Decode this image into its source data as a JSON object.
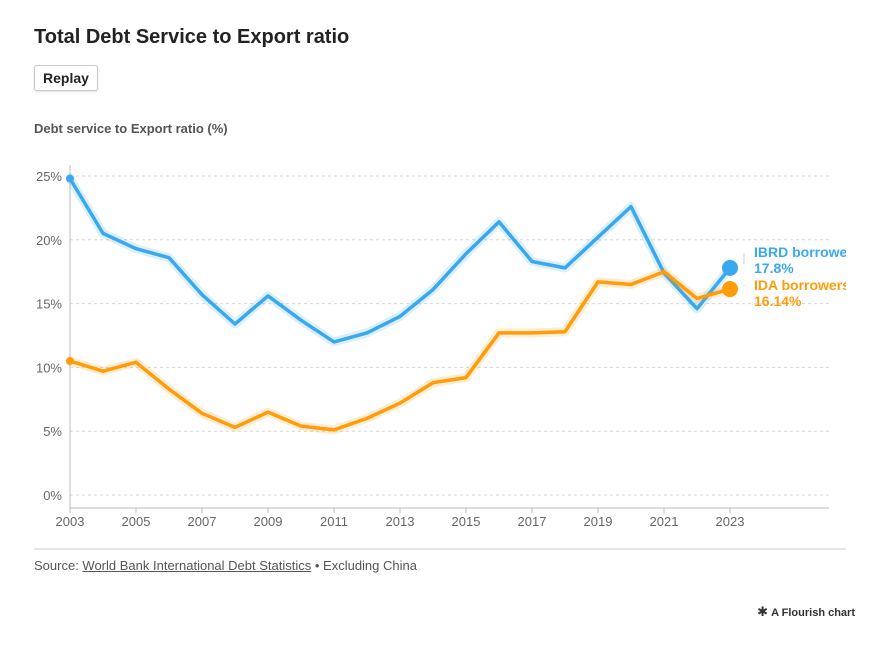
{
  "title": "Total Debt Service to Export ratio",
  "replay_label": "Replay",
  "source": {
    "prefix": "Source: ",
    "link_text": "World Bank International Debt Statistics",
    "suffix": " • Excluding China"
  },
  "credit": {
    "icon": "flourish-star-icon",
    "text": "A Flourish chart"
  },
  "chart_data": {
    "type": "line",
    "title": "Total Debt Service to Export ratio",
    "ylabel": "Debt service to Export ratio (%)",
    "xlabel": "",
    "ylim": [
      0,
      25
    ],
    "xlim": [
      2003,
      2023
    ],
    "yticks": [
      0,
      5,
      10,
      15,
      20,
      25
    ],
    "ytick_labels": [
      "0%",
      "5%",
      "10%",
      "15%",
      "20%",
      "25%"
    ],
    "xticks": [
      2003,
      2005,
      2007,
      2009,
      2011,
      2013,
      2015,
      2017,
      2019,
      2021,
      2023
    ],
    "grid": true,
    "legend": "end-labels",
    "x": [
      2003,
      2004,
      2005,
      2006,
      2007,
      2008,
      2009,
      2010,
      2011,
      2012,
      2013,
      2014,
      2015,
      2016,
      2017,
      2018,
      2019,
      2020,
      2021,
      2022,
      2023
    ],
    "series": [
      {
        "name": "IBRD borrowers",
        "color": "#3aa8ee",
        "end_value_label": "17.8%",
        "values": [
          24.8,
          20.5,
          19.3,
          18.6,
          15.7,
          13.4,
          15.6,
          13.7,
          12.0,
          12.7,
          14.0,
          16.1,
          18.9,
          21.4,
          18.3,
          17.8,
          20.2,
          22.6,
          17.4,
          14.6,
          17.8
        ]
      },
      {
        "name": "IDA borrowers",
        "color": "#ff9c0a",
        "end_value_label": "16.14%",
        "values": [
          10.5,
          9.7,
          10.4,
          8.3,
          6.4,
          5.3,
          6.5,
          5.4,
          5.1,
          6.0,
          7.2,
          8.8,
          9.2,
          12.7,
          12.7,
          12.8,
          16.7,
          16.5,
          17.5,
          15.4,
          16.14
        ]
      }
    ]
  }
}
